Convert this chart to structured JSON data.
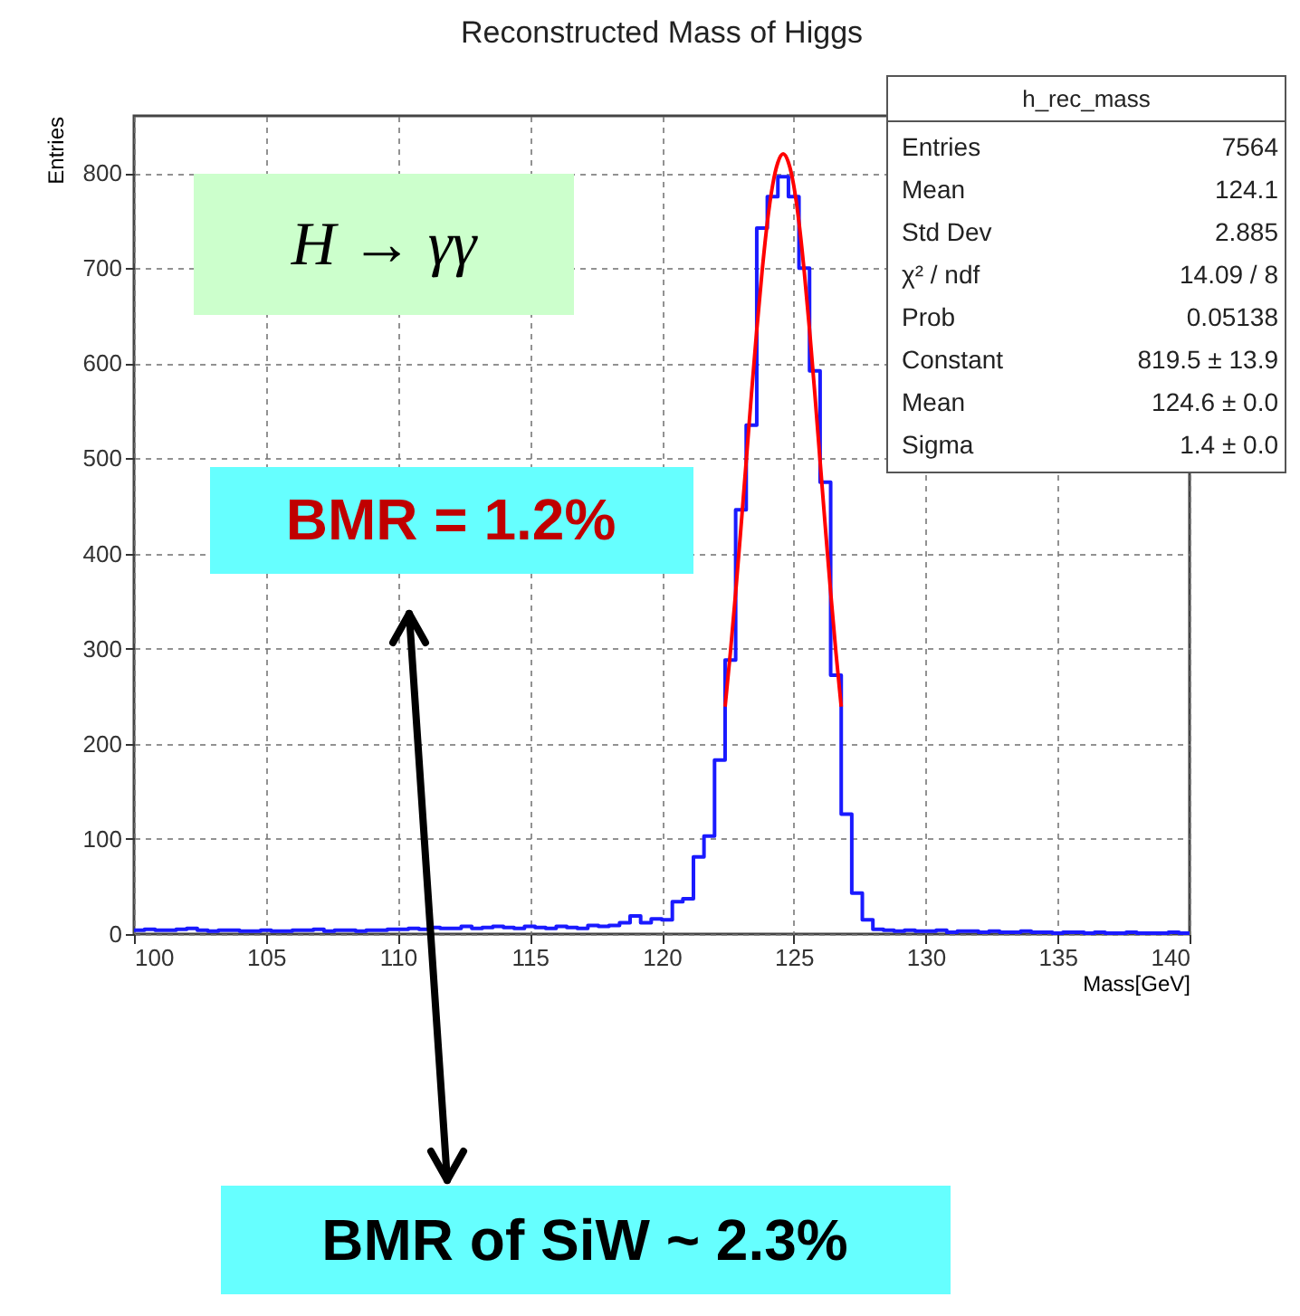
{
  "chart_data": {
    "type": "histogram",
    "title": "Reconstructed Mass of Higgs",
    "xlabel": "Mass[GeV]",
    "ylabel": "Entries",
    "xlim": [
      100,
      140
    ],
    "xticks": [
      100,
      105,
      110,
      115,
      120,
      125,
      130,
      135,
      140
    ],
    "ylim": [
      0,
      860
    ],
    "yticks": [
      0,
      100,
      200,
      300,
      400,
      500,
      600,
      700,
      800
    ],
    "grid": true,
    "bins": [
      100,
      100.4,
      100.8,
      101.2,
      101.6,
      102,
      102.4,
      102.8,
      103.2,
      103.6,
      104,
      104.4,
      104.8,
      105.2,
      105.6,
      106,
      106.4,
      106.8,
      107.2,
      107.6,
      108,
      108.4,
      108.8,
      109.2,
      109.6,
      110,
      110.4,
      110.8,
      111.2,
      111.6,
      112,
      112.4,
      112.8,
      113.2,
      113.6,
      114,
      114.4,
      114.8,
      115.2,
      115.6,
      116,
      116.4,
      116.8,
      117.2,
      117.6,
      118,
      118.4,
      118.8,
      119.2,
      119.6,
      120,
      120.4,
      120.8,
      121.2,
      121.6,
      122,
      122.4,
      122.8,
      123.2,
      123.6,
      124,
      124.4,
      124.8,
      125.2,
      125.6,
      126,
      126.4,
      126.8,
      127.2,
      127.6,
      128,
      128.4,
      128.8,
      129.2,
      129.6,
      130,
      130.4,
      130.8,
      131.2,
      131.6,
      132,
      132.4,
      132.8,
      133.2,
      133.6,
      134,
      134.4,
      134.8,
      135.2,
      135.6,
      136,
      136.4,
      136.8,
      137.2,
      137.6,
      138,
      138.4,
      138.8,
      139.2,
      139.6,
      140
    ],
    "series": [
      {
        "color": "#1a1aff",
        "values": [
          4,
          5,
          4,
          4,
          5,
          6,
          4,
          3,
          4,
          4,
          3,
          3,
          4,
          3,
          3,
          4,
          4,
          5,
          3,
          4,
          4,
          3,
          4,
          4,
          5,
          5,
          6,
          5,
          7,
          6,
          6,
          8,
          6,
          7,
          8,
          7,
          6,
          8,
          7,
          6,
          8,
          7,
          6,
          9,
          8,
          9,
          12,
          19,
          12,
          16,
          15,
          34,
          37,
          81,
          103,
          183,
          288,
          446,
          535,
          742,
          775,
          796,
          775,
          700,
          592,
          475,
          272,
          126,
          43,
          15,
          5,
          4,
          3,
          4,
          3,
          3,
          4,
          2,
          3,
          3,
          2,
          3,
          2,
          2,
          3,
          2,
          2,
          1,
          2,
          2,
          1,
          2,
          1,
          1,
          2,
          1,
          1,
          1,
          2,
          1
        ]
      },
      {
        "type": "line",
        "color": "#ff0000",
        "x": [
          122.4,
          122.6,
          122.8,
          123,
          123.2,
          123.4,
          123.6,
          123.8,
          124,
          124.2,
          124.4,
          124.6,
          124.8,
          125,
          125.2,
          125.4,
          125.6,
          125.8,
          126,
          126.2,
          126.4,
          126.6,
          126.8
        ],
        "values": [
          239,
          296,
          359,
          427,
          497,
          568,
          635,
          696,
          748,
          787,
          811,
          820,
          811,
          787,
          748,
          696,
          635,
          568,
          497,
          427,
          359,
          296,
          239
        ]
      }
    ],
    "annotations": [
      "H → γγ",
      "BMR = 1.2%",
      "BMR of SiW ~ 2.3%",
      "h_rec_mass",
      "Entries",
      "7564",
      "Mean",
      "124.1",
      "Std Dev",
      "2.885",
      "χ² / ndf",
      "14.09 / 8",
      "Prob",
      "0.05138",
      "Constant",
      "819.5 ± 13.9",
      "Mean",
      "124.6 ± 0.0",
      "Sigma",
      "1.4 ± 0.0"
    ]
  }
}
